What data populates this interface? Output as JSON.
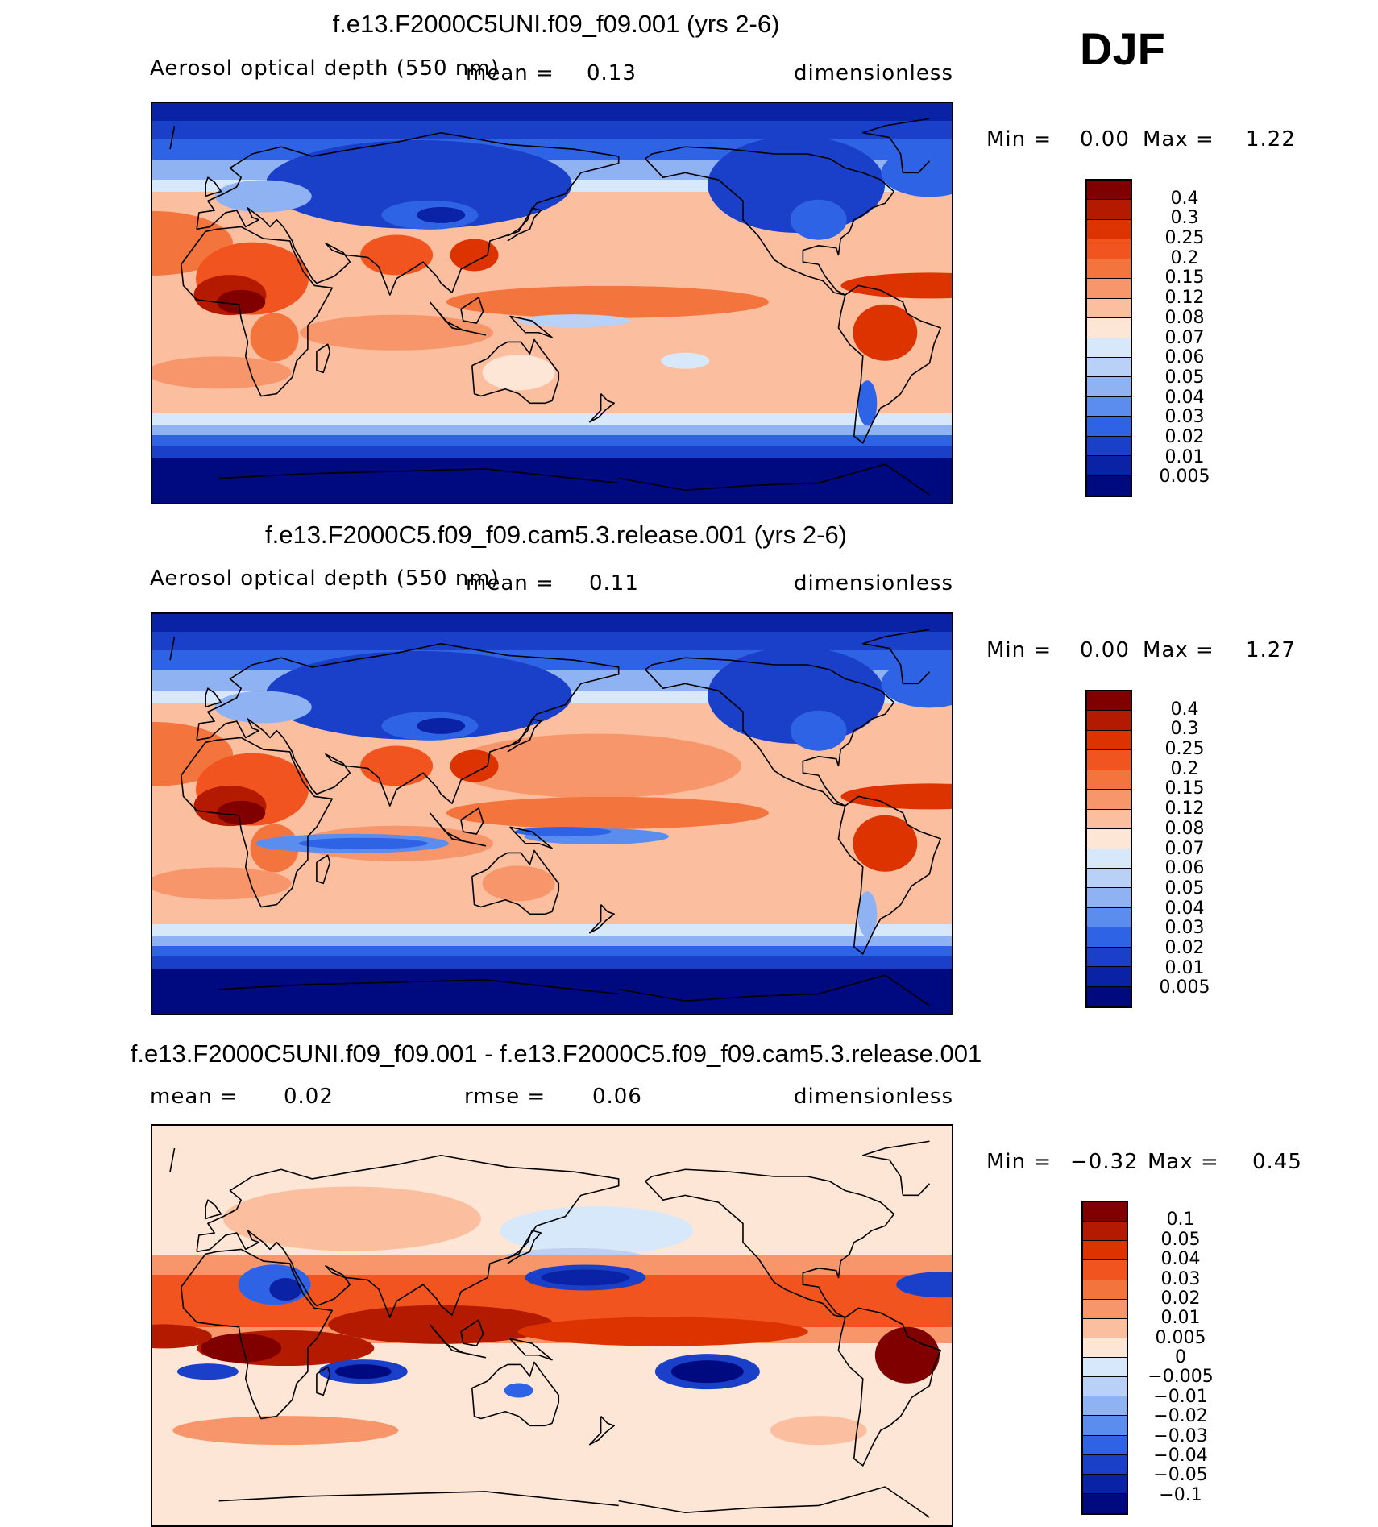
{
  "season_label": "DJF",
  "chart_data": [
    {
      "type": "heatmap",
      "title": "f.e13.F2000C5UNI.f09_f09.001 (yrs 2-6)",
      "variable": "Aerosol optical depth (550 nm)",
      "units": "dimensionless",
      "mean_label": "mean =",
      "mean_value": "0.13",
      "min_label": "Min =",
      "min_value": "0.00",
      "max_label": "Max =",
      "max_value": "1.22",
      "colorbar_ticks": [
        "0.4",
        "0.3",
        "0.25",
        "0.2",
        "0.15",
        "0.12",
        "0.08",
        "0.07",
        "0.06",
        "0.05",
        "0.04",
        "0.03",
        "0.02",
        "0.01",
        "0.005"
      ],
      "colorbar_colors": [
        "#800000",
        "#b31a00",
        "#dd3300",
        "#f2541f",
        "#f4743d",
        "#f7966a",
        "#fbbfa0",
        "#fde6d5",
        "#d7e8fa",
        "#b9d1f7",
        "#8fb3f2",
        "#5a8ded",
        "#2f63e6",
        "#1a3fc9",
        "#0a22a6",
        "#000a80"
      ],
      "regime": "abs"
    },
    {
      "type": "heatmap",
      "title": "f.e13.F2000C5.f09_f09.cam5.3.release.001 (yrs 2-6)",
      "variable": "Aerosol optical depth (550 nm)",
      "units": "dimensionless",
      "mean_label": "mean =",
      "mean_value": "0.11",
      "min_label": "Min =",
      "min_value": "0.00",
      "max_label": "Max =",
      "max_value": "1.27",
      "colorbar_ticks": [
        "0.4",
        "0.3",
        "0.25",
        "0.2",
        "0.15",
        "0.12",
        "0.08",
        "0.07",
        "0.06",
        "0.05",
        "0.04",
        "0.03",
        "0.02",
        "0.01",
        "0.005"
      ],
      "colorbar_colors": [
        "#800000",
        "#b31a00",
        "#dd3300",
        "#f2541f",
        "#f4743d",
        "#f7966a",
        "#fbbfa0",
        "#fde6d5",
        "#d7e8fa",
        "#b9d1f7",
        "#8fb3f2",
        "#5a8ded",
        "#2f63e6",
        "#1a3fc9",
        "#0a22a6",
        "#000a80"
      ],
      "regime": "abs"
    },
    {
      "type": "heatmap",
      "title": "f.e13.F2000C5UNI.f09_f09.001 - f.e13.F2000C5.f09_f09.cam5.3.release.001",
      "variable": "",
      "units": "dimensionless",
      "mean_label": "mean =",
      "mean_value": "0.02",
      "rmse_label": "rmse =",
      "rmse_value": "0.06",
      "min_label": "Min =",
      "min_value": "−0.32",
      "max_label": "Max =",
      "max_value": "0.45",
      "colorbar_ticks": [
        "0.1",
        "0.05",
        "0.04",
        "0.03",
        "0.02",
        "0.01",
        "0.005",
        "0",
        "−0.005",
        "−0.01",
        "−0.02",
        "−0.03",
        "−0.04",
        "−0.05",
        "−0.1"
      ],
      "colorbar_colors": [
        "#800000",
        "#b31a00",
        "#dd3300",
        "#f2541f",
        "#f4743d",
        "#f7966a",
        "#fbbfa0",
        "#fde6d5",
        "#d7e8fa",
        "#b9d1f7",
        "#8fb3f2",
        "#5a8ded",
        "#2f63e6",
        "#1a3fc9",
        "#0a22a6",
        "#000a80"
      ],
      "regime": "diff"
    }
  ]
}
